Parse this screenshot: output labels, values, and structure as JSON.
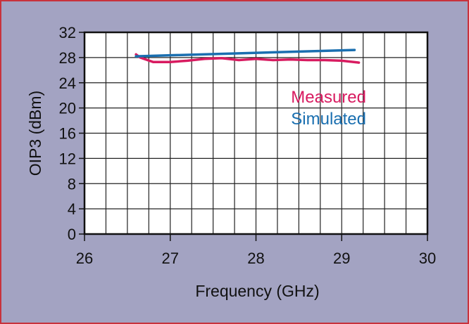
{
  "chart_data": {
    "type": "line",
    "title": "",
    "xlabel": "Frequency (GHz)",
    "ylabel": "OIP3 (dBm)",
    "xlim": [
      26,
      30
    ],
    "ylim": [
      0,
      32
    ],
    "xticks": [
      26,
      27,
      28,
      29,
      30
    ],
    "yticks": [
      0,
      4,
      8,
      12,
      16,
      20,
      24,
      28,
      32
    ],
    "grid": true,
    "legend": "inside right, below top lines",
    "series": [
      {
        "name": "Measured",
        "color": "#d81b60",
        "x": [
          26.6,
          26.65,
          26.8,
          27.0,
          27.2,
          27.4,
          27.6,
          27.8,
          28.0,
          28.2,
          28.4,
          28.6,
          28.8,
          29.0,
          29.2
        ],
        "y": [
          28.5,
          28.0,
          27.3,
          27.3,
          27.5,
          27.8,
          27.9,
          27.6,
          27.8,
          27.6,
          27.7,
          27.6,
          27.6,
          27.5,
          27.2
        ]
      },
      {
        "name": "Simulated",
        "color": "#1a6fb0",
        "x": [
          26.6,
          29.15
        ],
        "y": [
          28.2,
          29.2
        ]
      }
    ]
  }
}
